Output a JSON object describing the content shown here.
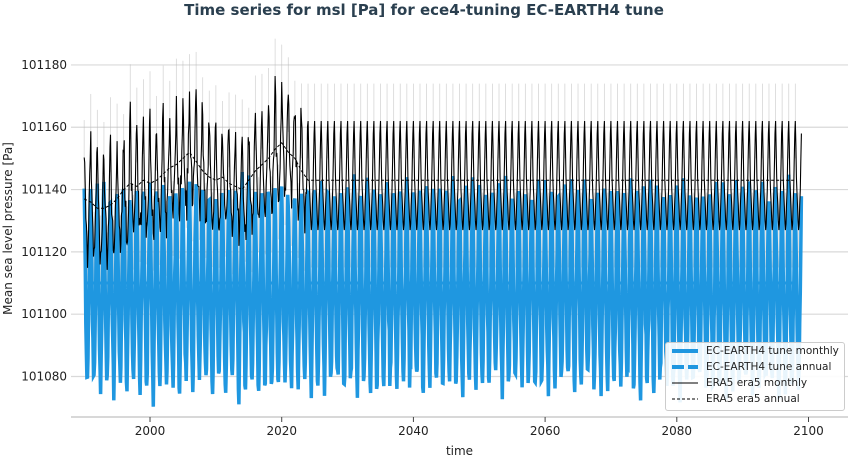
{
  "title": "Time series for msl [Pa] for ece4-tuning EC-EARTH4 tune",
  "chart_data": {
    "type": "line",
    "title": "Time series for msl [Pa] for ece4-tuning EC-EARTH4 tune",
    "xlabel": "time",
    "ylabel": "Mean sea level pressure [Pa]",
    "xlim": [
      1988,
      2106
    ],
    "ylim": [
      101067,
      101188
    ],
    "xticks": [
      2000,
      2020,
      2040,
      2060,
      2080,
      2100
    ],
    "yticks": [
      101080,
      101100,
      101120,
      101140,
      101160,
      101180
    ],
    "grid": "horizontal",
    "legend_position": "bottom-right",
    "series": [
      {
        "name": "EC-EARTH4 tune monthly",
        "color": "#1f97e0",
        "style": "solid-thick",
        "years": [
          1990,
          2098
        ],
        "annual_mean": 101110,
        "seasonal_cycle": [
          30,
          20,
          5,
          -10,
          -20,
          -30,
          -33,
          -25,
          -12,
          0,
          12,
          26
        ]
      },
      {
        "name": "EC-EARTH4 tune annual",
        "color": "#1f97e0",
        "style": "dashed-thick",
        "years": [
          1990,
          2098
        ],
        "value": 101110
      },
      {
        "name": "ERA5 era5 monthly",
        "color": "#000000",
        "style": "solid",
        "years": [
          1990,
          2098
        ],
        "seasonal_cycle": [
          19,
          11,
          1,
          -4,
          -8,
          -13,
          -16,
          -14,
          -8,
          -3,
          6,
          15
        ]
      },
      {
        "name": "ERA5 era5 annual",
        "color": "#000000",
        "style": "dashed",
        "x": [
          1990,
          1991,
          1992,
          1993,
          1994,
          1995,
          1996,
          1997,
          1998,
          1999,
          2000,
          2001,
          2002,
          2003,
          2004,
          2005,
          2006,
          2007,
          2008,
          2009,
          2010,
          2011,
          2012,
          2013,
          2014,
          2015,
          2016,
          2017,
          2018,
          2019,
          2020,
          2021,
          2022,
          2023,
          2024,
          2098
        ],
        "y": [
          101137,
          101136,
          101134,
          101134,
          101135,
          101137,
          101140,
          101142,
          101141,
          101143,
          101142,
          101143,
          101145,
          101147,
          101148,
          101150,
          101152,
          101149,
          101146,
          101144,
          101143,
          101144,
          101142,
          101141,
          101140,
          101143,
          101146,
          101148,
          101150,
          101153,
          101155,
          101152,
          101150,
          101146,
          101143,
          101143
        ]
      }
    ]
  },
  "legend": [
    {
      "label": "EC-EARTH4 tune monthly"
    },
    {
      "label": "EC-EARTH4 tune annual"
    },
    {
      "label": "ERA5 era5 monthly"
    },
    {
      "label": "ERA5 era5 annual"
    }
  ]
}
